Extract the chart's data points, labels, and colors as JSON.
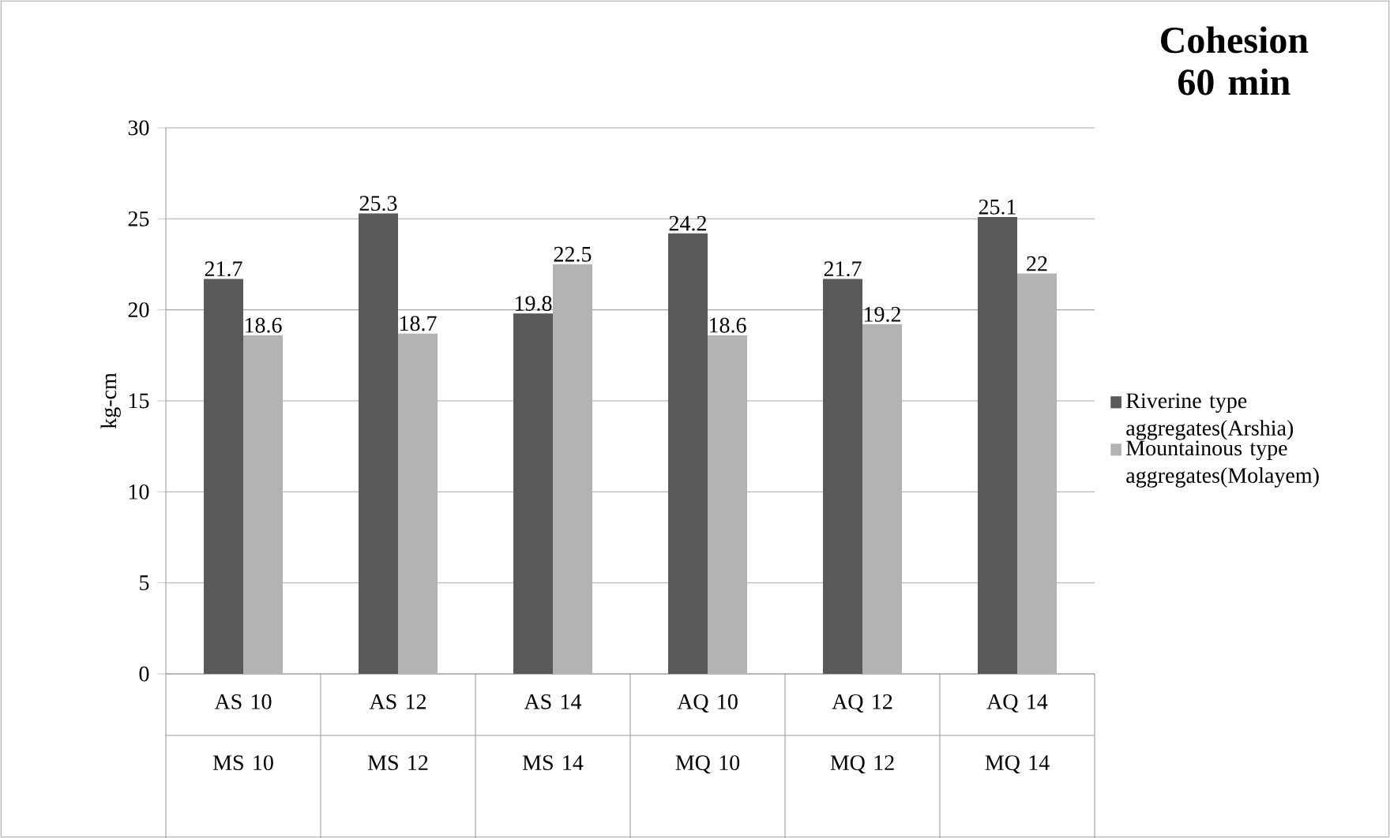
{
  "chart_data": {
    "type": "bar",
    "title": "Cohesion 60 min",
    "ylabel": "kg-cm",
    "categories": [
      "AS 10 MS 10",
      "AS 12 MS 12",
      "AS 14 MS 14",
      "AQ 10 MQ 10",
      "AQ 12 MQ 12",
      "AQ 14 MQ 14"
    ],
    "series": [
      {
        "name": "Riverine type aggregates(Arshia)",
        "color": "#595959",
        "values": [
          21.7,
          25.3,
          19.8,
          24.2,
          21.7,
          25.1
        ]
      },
      {
        "name": "Mountainous type aggregates(Molayem)",
        "color": "#b3b3b3",
        "values": [
          18.6,
          18.7,
          22.5,
          18.6,
          19.2,
          22
        ]
      }
    ],
    "ylim": [
      0,
      30
    ],
    "yticks": [
      0,
      5,
      10,
      15,
      20,
      25,
      30
    ],
    "grid": "y",
    "legend": "right",
    "data_labels": true
  }
}
